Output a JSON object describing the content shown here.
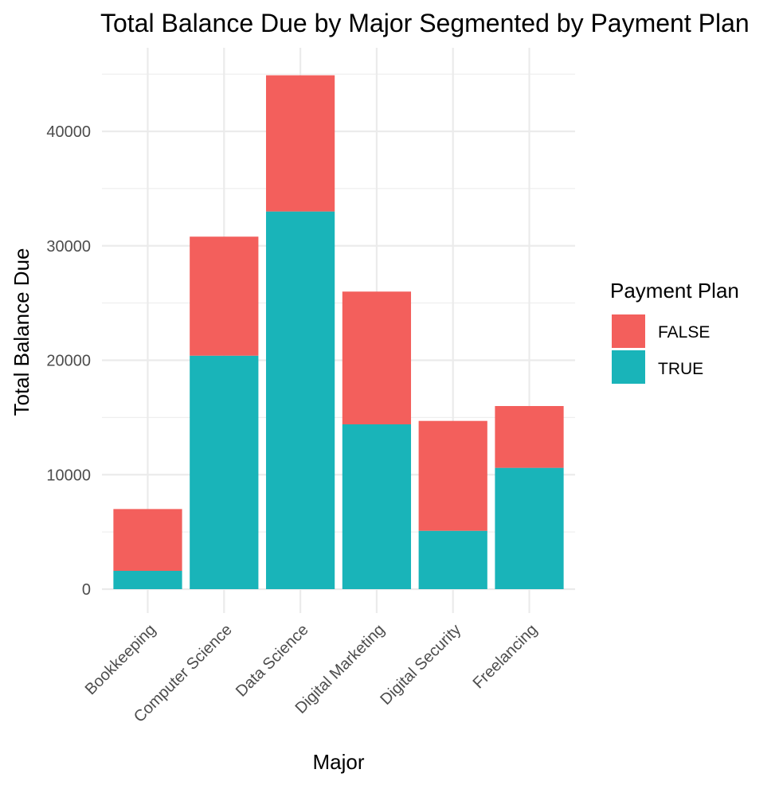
{
  "chart_data": {
    "type": "bar",
    "stacked": true,
    "title": "Total Balance Due by Major Segmented by Payment Plan",
    "xlabel": "Major",
    "ylabel": "Total Balance Due",
    "categories": [
      "Bookkeeping",
      "Computer Science",
      "Data Science",
      "Digital Marketing",
      "Digital Security",
      "Freelancing"
    ],
    "series": [
      {
        "name": "TRUE",
        "color": "#19b4b9",
        "values": [
          1600,
          20400,
          33000,
          14400,
          5100,
          10600
        ]
      },
      {
        "name": "FALSE",
        "color": "#f35f5c",
        "values": [
          5400,
          10400,
          11900,
          11600,
          9600,
          5400
        ]
      }
    ],
    "legend": {
      "title": "Payment Plan",
      "placement": "right",
      "items": [
        {
          "label": "FALSE",
          "color": "#f35f5c"
        },
        {
          "label": "TRUE",
          "color": "#19b4b9"
        }
      ]
    },
    "ylim": [
      0,
      46000
    ],
    "yticks": [
      0,
      10000,
      20000,
      30000,
      40000
    ],
    "ytick_labels": [
      "0",
      "10000",
      "20000",
      "30000",
      "40000"
    ],
    "grid": true
  }
}
